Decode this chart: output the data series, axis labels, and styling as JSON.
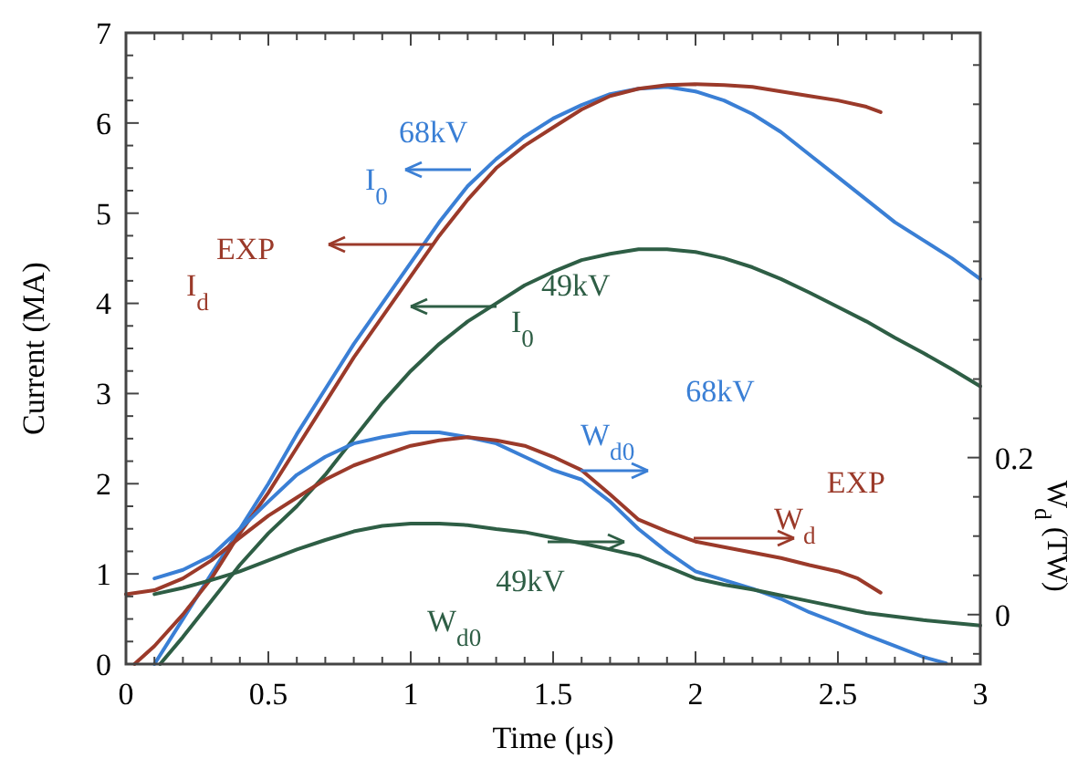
{
  "chart_data": {
    "type": "line",
    "xlabel": "Time (μs)",
    "ylabel": "Current (MA)",
    "y2label": "W$_{d}$ (TW)",
    "xlim": [
      0,
      3
    ],
    "ylim": [
      0,
      7
    ],
    "y2lim": [
      -0.063,
      0.741
    ],
    "xticks": [
      0,
      {
        "value": 0.1,
        "label": null
      },
      {
        "value": 0.2,
        "label": null
      },
      {
        "value": 0.3,
        "label": null
      },
      {
        "value": 0.4,
        "label": null
      },
      0.5,
      {
        "value": 0.6,
        "label": null
      },
      {
        "value": 0.7,
        "label": null
      },
      {
        "value": 0.8,
        "label": null
      },
      {
        "value": 0.9,
        "label": null
      },
      1,
      {
        "value": 1.1,
        "label": null
      },
      {
        "value": 1.2,
        "label": null
      },
      {
        "value": 1.3,
        "label": null
      },
      {
        "value": 1.4,
        "label": null
      },
      1.5,
      {
        "value": 1.6,
        "label": null
      },
      {
        "value": 1.7,
        "label": null
      },
      {
        "value": 1.8,
        "label": null
      },
      {
        "value": 1.9,
        "label": null
      },
      2,
      {
        "value": 2.1,
        "label": null
      },
      {
        "value": 2.2,
        "label": null
      },
      {
        "value": 2.3,
        "label": null
      },
      {
        "value": 2.4,
        "label": null
      },
      2.5,
      {
        "value": 2.6,
        "label": null
      },
      {
        "value": 2.7,
        "label": null
      },
      {
        "value": 2.8,
        "label": null
      },
      {
        "value": 2.9,
        "label": null
      },
      3
    ],
    "yticks": [
      0,
      {
        "value": 0.25,
        "label": null
      },
      {
        "value": 0.5,
        "label": null
      },
      {
        "value": 0.75,
        "label": null
      },
      1,
      {
        "value": 1.25,
        "label": null
      },
      {
        "value": 1.5,
        "label": null
      },
      {
        "value": 1.75,
        "label": null
      },
      2,
      {
        "value": 2.25,
        "label": null
      },
      {
        "value": 2.5,
        "label": null
      },
      {
        "value": 2.75,
        "label": null
      },
      3,
      {
        "value": 3.25,
        "label": null
      },
      {
        "value": 3.5,
        "label": null
      },
      {
        "value": 3.75,
        "label": null
      },
      4,
      {
        "value": 4.25,
        "label": null
      },
      {
        "value": 4.5,
        "label": null
      },
      {
        "value": 4.75,
        "label": null
      },
      5,
      {
        "value": 5.25,
        "label": null
      },
      {
        "value": 5.5,
        "label": null
      },
      {
        "value": 5.75,
        "label": null
      },
      6,
      {
        "value": 6.25,
        "label": null
      },
      {
        "value": 6.5,
        "label": null
      },
      {
        "value": 6.75,
        "label": null
      },
      7
    ],
    "y2ticks": [
      {
        "value": -0.05,
        "label": null
      },
      0,
      {
        "value": 0.05,
        "label": null
      },
      {
        "value": 0.1,
        "label": null
      },
      {
        "value": 0.15,
        "label": null
      },
      0.2,
      {
        "value": 0.25,
        "label": null
      },
      {
        "value": 0.3,
        "label": null
      },
      {
        "value": 0.35,
        "label": null
      },
      {
        "value": 0.4,
        "label": null
      },
      {
        "value": 0.45,
        "label": null
      },
      {
        "value": 0.5,
        "label": null
      },
      {
        "value": 0.55,
        "label": null
      },
      {
        "value": 0.6,
        "label": null
      },
      {
        "value": 0.65,
        "label": null
      },
      {
        "value": 0.7,
        "label": null
      }
    ],
    "series": [
      {
        "name": "I$_{0}$ 68kV",
        "color": "#3a7fd5",
        "x": [
          0.1,
          0.2,
          0.3,
          0.4,
          0.5,
          0.6,
          0.7,
          0.8,
          0.9,
          1.0,
          1.1,
          1.2,
          1.3,
          1.4,
          1.5,
          1.6,
          1.7,
          1.8,
          1.9,
          2.0,
          2.1,
          2.2,
          2.3,
          2.4,
          2.5,
          2.6,
          2.7,
          2.8,
          2.9,
          3.0
        ],
        "values": [
          0,
          0.5,
          1.0,
          1.5,
          2.0,
          2.55,
          3.05,
          3.55,
          4.0,
          4.45,
          4.9,
          5.3,
          5.6,
          5.85,
          6.05,
          6.2,
          6.32,
          6.38,
          6.4,
          6.35,
          6.25,
          6.1,
          5.9,
          5.65,
          5.4,
          5.15,
          4.9,
          4.7,
          4.5,
          4.27
        ]
      },
      {
        "name": "I$_{d}$ EXP",
        "color": "#9b3a2a",
        "x": [
          0.03,
          0.1,
          0.2,
          0.3,
          0.4,
          0.5,
          0.6,
          0.7,
          0.8,
          0.9,
          1.0,
          1.1,
          1.2,
          1.3,
          1.4,
          1.5,
          1.6,
          1.7,
          1.8,
          1.9,
          2.0,
          2.1,
          2.2,
          2.3,
          2.4,
          2.5,
          2.6,
          2.65
        ],
        "values": [
          0,
          0.2,
          0.55,
          0.95,
          1.45,
          1.9,
          2.4,
          2.9,
          3.4,
          3.85,
          4.3,
          4.75,
          5.15,
          5.5,
          5.75,
          5.95,
          6.15,
          6.3,
          6.38,
          6.42,
          6.43,
          6.42,
          6.4,
          6.35,
          6.3,
          6.25,
          6.18,
          6.12
        ]
      },
      {
        "name": "I$_{0}$ 49kV",
        "color": "#2e5e45",
        "x": [
          0.12,
          0.2,
          0.3,
          0.4,
          0.5,
          0.6,
          0.7,
          0.8,
          0.9,
          1.0,
          1.1,
          1.2,
          1.3,
          1.4,
          1.5,
          1.6,
          1.7,
          1.8,
          1.9,
          2.0,
          2.1,
          2.2,
          2.3,
          2.4,
          2.5,
          2.6,
          2.7,
          2.8,
          2.9,
          3.0
        ],
        "values": [
          0,
          0.3,
          0.7,
          1.1,
          1.45,
          1.75,
          2.1,
          2.5,
          2.9,
          3.25,
          3.55,
          3.8,
          4.0,
          4.2,
          4.35,
          4.48,
          4.55,
          4.6,
          4.6,
          4.57,
          4.5,
          4.4,
          4.27,
          4.12,
          3.96,
          3.8,
          3.62,
          3.45,
          3.27,
          3.08
        ]
      },
      {
        "name": "W$_{d0}$ 68kV",
        "color": "#3a7fd5",
        "axis": "y2",
        "x": [
          0.1,
          0.2,
          0.3,
          0.4,
          0.5,
          0.6,
          0.7,
          0.8,
          0.9,
          1.0,
          1.1,
          1.2,
          1.3,
          1.4,
          1.5,
          1.6,
          1.7,
          1.8,
          1.9,
          2.0,
          2.1,
          2.2,
          2.3,
          2.4,
          2.5,
          2.6,
          2.7,
          2.8,
          2.88
        ],
        "values": [
          0.046,
          0.057,
          0.075,
          0.109,
          0.144,
          0.178,
          0.201,
          0.218,
          0.226,
          0.232,
          0.232,
          0.226,
          0.218,
          0.201,
          0.184,
          0.172,
          0.144,
          0.109,
          0.08,
          0.055,
          0.044,
          0.033,
          0.02,
          0.003,
          -0.011,
          -0.026,
          -0.04,
          -0.054,
          -0.062
        ]
      },
      {
        "name": "W$_{d}$ EXP",
        "color": "#9b3a2a",
        "axis": "y2",
        "x": [
          0,
          0.1,
          0.2,
          0.3,
          0.4,
          0.5,
          0.6,
          0.7,
          0.8,
          0.9,
          1.0,
          1.1,
          1.2,
          1.3,
          1.4,
          1.5,
          1.6,
          1.7,
          1.8,
          1.9,
          2.0,
          2.1,
          2.2,
          2.3,
          2.4,
          2.5,
          2.57,
          2.65
        ],
        "values": [
          0.026,
          0.031,
          0.046,
          0.069,
          0.098,
          0.126,
          0.149,
          0.172,
          0.19,
          0.203,
          0.215,
          0.222,
          0.226,
          0.222,
          0.215,
          0.201,
          0.184,
          0.153,
          0.121,
          0.106,
          0.093,
          0.086,
          0.079,
          0.072,
          0.063,
          0.055,
          0.046,
          0.028
        ]
      },
      {
        "name": "W$_{d0}$ 49kV",
        "color": "#2e5e45",
        "axis": "y2",
        "x": [
          0.1,
          0.2,
          0.3,
          0.4,
          0.5,
          0.6,
          0.7,
          0.8,
          0.9,
          1.0,
          1.1,
          1.2,
          1.3,
          1.4,
          1.5,
          1.6,
          1.7,
          1.8,
          1.9,
          2.0,
          2.1,
          2.2,
          2.4,
          2.6,
          2.8,
          3.0
        ],
        "values": [
          0.026,
          0.034,
          0.044,
          0.055,
          0.069,
          0.083,
          0.095,
          0.106,
          0.113,
          0.116,
          0.116,
          0.114,
          0.109,
          0.105,
          0.098,
          0.091,
          0.083,
          0.075,
          0.061,
          0.046,
          0.038,
          0.032,
          0.017,
          0.002,
          -0.007,
          -0.014
        ]
      }
    ]
  }
}
